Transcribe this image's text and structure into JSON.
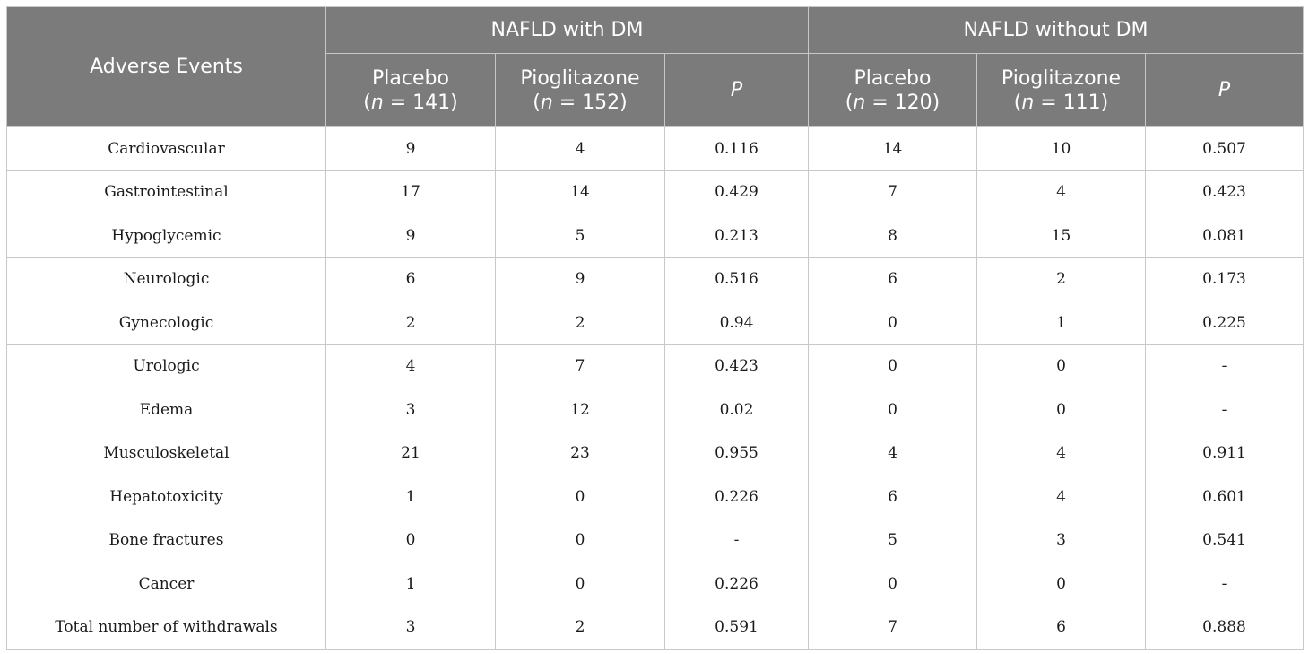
{
  "table": {
    "row_header": "Adverse Events",
    "groups": [
      "NAFLD with DM",
      "NAFLD without DM"
    ],
    "columns": [
      {
        "label": "Placebo",
        "n_prefix": "(",
        "n_var": "n",
        "n_value": " = 141)"
      },
      {
        "label": "Pioglitazone",
        "n_prefix": "(",
        "n_var": "n",
        "n_value": " = 152)"
      },
      {
        "label": "P"
      },
      {
        "label": "Placebo",
        "n_prefix": "(",
        "n_var": "n",
        "n_value": " = 120)"
      },
      {
        "label": "Pioglitazone",
        "n_prefix": "(",
        "n_var": "n",
        "n_value": " = 111)"
      },
      {
        "label": "P"
      }
    ],
    "rows": [
      [
        "Cardiovascular",
        "9",
        "4",
        "0.116",
        "14",
        "10",
        "0.507"
      ],
      [
        "Gastrointestinal",
        "17",
        "14",
        "0.429",
        "7",
        "4",
        "0.423"
      ],
      [
        "Hypoglycemic",
        "9",
        "5",
        "0.213",
        "8",
        "15",
        "0.081"
      ],
      [
        "Neurologic",
        "6",
        "9",
        "0.516",
        "6",
        "2",
        "0.173"
      ],
      [
        "Gynecologic",
        "2",
        "2",
        "0.94",
        "0",
        "1",
        "0.225"
      ],
      [
        "Urologic",
        "4",
        "7",
        "0.423",
        "0",
        "0",
        "-"
      ],
      [
        "Edema",
        "3",
        "12",
        "0.02",
        "0",
        "0",
        "-"
      ],
      [
        "Musculoskeletal",
        "21",
        "23",
        "0.955",
        "4",
        "4",
        "0.911"
      ],
      [
        "Hepatotoxicity",
        "1",
        "0",
        "0.226",
        "6",
        "4",
        "0.601"
      ],
      [
        "Bone fractures",
        "0",
        "0",
        "-",
        "5",
        "3",
        "0.541"
      ],
      [
        "Cancer",
        "1",
        "0",
        "0.226",
        "0",
        "0",
        "-"
      ],
      [
        "Total number of withdrawals",
        "3",
        "2",
        "0.591",
        "7",
        "6",
        "0.888"
      ]
    ]
  }
}
